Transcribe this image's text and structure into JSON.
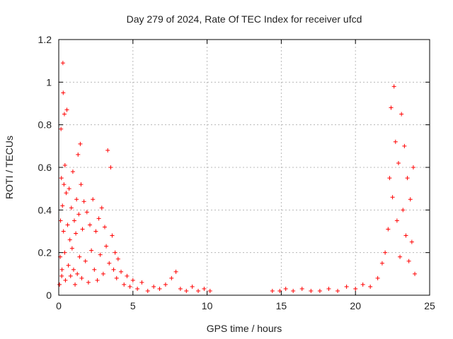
{
  "chart_data": {
    "type": "scatter",
    "title": "Day 279 of 2024, Rate Of TEC Index for receiver ufcd",
    "xlabel": "GPS time / hours",
    "ylabel": "ROTI / TECUs",
    "xlim": [
      0,
      25
    ],
    "ylim": [
      0,
      1.2
    ],
    "xticks": [
      0,
      5,
      10,
      15,
      20,
      25
    ],
    "yticks": [
      0,
      0.2,
      0.4,
      0.6,
      0.8,
      1,
      1.2
    ],
    "xtick_labels": [
      "0",
      "5",
      "10",
      "15",
      "20",
      "25"
    ],
    "ytick_labels": [
      "0",
      "0.2",
      "0.4",
      "0.6",
      "0.8",
      "1",
      "1.2"
    ],
    "grid": true,
    "marker": "+",
    "color": "#ff0000",
    "series": [
      {
        "x": [
          0.05,
          0.1,
          0.12,
          0.15,
          0.18,
          0.2,
          0.22,
          0.25,
          0.28,
          0.3,
          0.32,
          0.35,
          0.38,
          0.4,
          0.42,
          0.45,
          0.5,
          0.55,
          0.6,
          0.65,
          0.7,
          0.75,
          0.8,
          0.85,
          0.9,
          0.95,
          1.0,
          1.05,
          1.1,
          1.15,
          1.2,
          1.25,
          1.3,
          1.35,
          1.4,
          1.45,
          1.5,
          1.55,
          1.6,
          1.7,
          1.8,
          1.9,
          2.0,
          2.1,
          2.2,
          2.3,
          2.4,
          2.5,
          2.6,
          2.7,
          2.8,
          2.9,
          3.0,
          3.1,
          3.2,
          3.3,
          3.4,
          3.5,
          3.6,
          3.7,
          3.8,
          3.9,
          4.0,
          4.2,
          4.4,
          4.6,
          4.8,
          5.0,
          5.3,
          5.6,
          6.0,
          6.4,
          6.8,
          7.2,
          7.6,
          7.9,
          8.2,
          8.6,
          9.0,
          9.4,
          9.8,
          10.2,
          14.4,
          14.9,
          15.3,
          15.8,
          16.4,
          17.0,
          17.6,
          18.2,
          18.8,
          19.4,
          20.0,
          20.5,
          21.0,
          21.5,
          21.8,
          22.0,
          22.2,
          22.3,
          22.4,
          22.5,
          22.6,
          22.7,
          22.8,
          22.9,
          23.0,
          23.1,
          23.2,
          23.3,
          23.4,
          23.5,
          23.6,
          23.7,
          23.8,
          23.9,
          24.0
        ],
        "y": [
          0.05,
          0.18,
          0.35,
          0.78,
          0.55,
          0.09,
          0.12,
          0.42,
          1.09,
          0.95,
          0.3,
          0.52,
          0.85,
          0.2,
          0.61,
          0.07,
          0.48,
          0.87,
          0.33,
          0.14,
          0.5,
          0.26,
          0.09,
          0.41,
          0.22,
          0.58,
          0.12,
          0.35,
          0.05,
          0.29,
          0.45,
          0.1,
          0.66,
          0.38,
          0.18,
          0.71,
          0.52,
          0.08,
          0.31,
          0.44,
          0.16,
          0.39,
          0.06,
          0.33,
          0.21,
          0.45,
          0.12,
          0.3,
          0.07,
          0.36,
          0.19,
          0.41,
          0.1,
          0.32,
          0.23,
          0.68,
          0.15,
          0.6,
          0.28,
          0.12,
          0.2,
          0.08,
          0.17,
          0.11,
          0.05,
          0.09,
          0.04,
          0.07,
          0.03,
          0.06,
          0.02,
          0.04,
          0.03,
          0.05,
          0.08,
          0.11,
          0.03,
          0.02,
          0.04,
          0.02,
          0.03,
          0.02,
          0.02,
          0.02,
          0.03,
          0.02,
          0.03,
          0.02,
          0.02,
          0.03,
          0.02,
          0.04,
          0.03,
          0.05,
          0.04,
          0.08,
          0.15,
          0.2,
          0.31,
          0.55,
          0.88,
          0.46,
          0.98,
          0.72,
          0.35,
          0.62,
          0.18,
          0.85,
          0.4,
          0.7,
          0.28,
          0.55,
          0.16,
          0.45,
          0.25,
          0.6,
          0.1
        ]
      }
    ]
  }
}
